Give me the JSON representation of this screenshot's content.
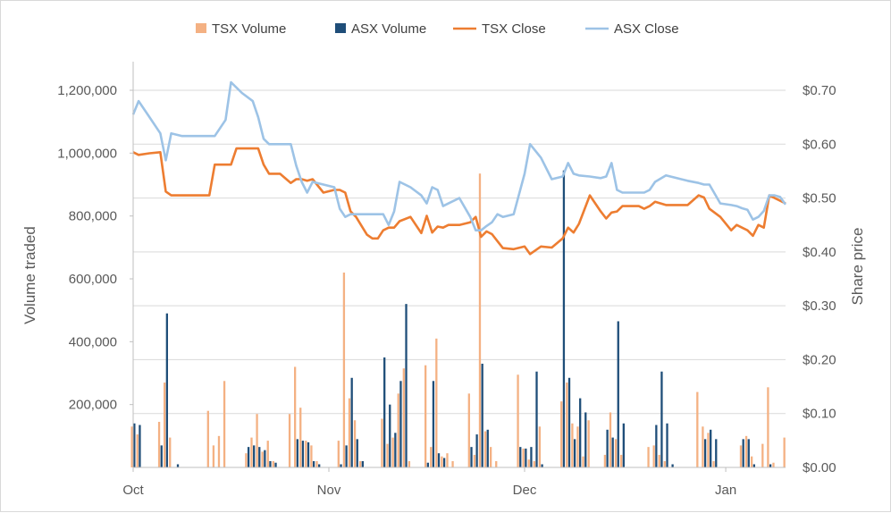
{
  "chart_data": {
    "type": "bar+line",
    "title": "",
    "legend": {
      "position": "top",
      "items": [
        {
          "label": "TSX Volume",
          "color": "#f4b183",
          "kind": "bar"
        },
        {
          "label": "ASX Volume",
          "color": "#1f4e79",
          "kind": "bar"
        },
        {
          "label": "TSX Close",
          "color": "#ed7d31",
          "kind": "line"
        },
        {
          "label": "ASX Close",
          "color": "#9dc3e6",
          "kind": "line"
        }
      ]
    },
    "x_axis": {
      "domain": [
        0,
        120
      ],
      "ticks": [
        {
          "label": "Oct",
          "x": 0
        },
        {
          "label": "Nov",
          "x": 36
        },
        {
          "label": "Dec",
          "x": 72
        },
        {
          "label": "Jan",
          "x": 109
        }
      ]
    },
    "y_left": {
      "label": "Volume traded",
      "range": [
        0,
        1200000
      ],
      "ticks": [
        "200,000",
        "400,000",
        "600,000",
        "800,000",
        "1,000,000",
        "1,200,000"
      ],
      "tick_values": [
        200000,
        400000,
        600000,
        800000,
        1000000,
        1200000
      ]
    },
    "y_right": {
      "label": "Share price",
      "range": [
        0,
        0.7
      ],
      "ticks": [
        "$0.00",
        "$0.10",
        "$0.20",
        "$0.30",
        "$0.40",
        "$0.50",
        "$0.60",
        "$0.70"
      ],
      "tick_values": [
        0,
        0.1,
        0.2,
        0.3,
        0.4,
        0.5,
        0.6,
        0.7
      ]
    },
    "grid": {
      "horizontal": true,
      "vertical": false
    },
    "series": [
      {
        "name": "TSX Volume",
        "type": "bar",
        "axis": "left",
        "color": "#f4b183",
        "x": [
          0,
          1,
          5,
          6,
          7,
          14,
          15,
          16,
          17,
          21,
          22,
          23,
          24,
          25,
          26,
          29,
          30,
          31,
          32,
          33,
          34,
          38,
          39,
          40,
          41,
          42,
          46,
          47,
          48,
          49,
          50,
          51,
          54,
          55,
          56,
          57,
          58,
          59,
          62,
          63,
          64,
          65,
          66,
          67,
          71,
          72,
          73,
          74,
          75,
          79,
          80,
          81,
          82,
          83,
          84,
          87,
          88,
          89,
          90,
          95,
          96,
          97,
          98,
          104,
          105,
          106,
          107,
          112,
          113,
          114,
          116,
          117,
          118,
          120
        ],
        "values": [
          130000,
          105000,
          145000,
          270000,
          95000,
          180000,
          70000,
          100000,
          275000,
          45000,
          95000,
          170000,
          50000,
          85000,
          20000,
          170000,
          320000,
          190000,
          85000,
          70000,
          20000,
          85000,
          620000,
          220000,
          150000,
          20000,
          155000,
          75000,
          95000,
          235000,
          315000,
          20000,
          325000,
          65000,
          410000,
          35000,
          45000,
          20000,
          235000,
          40000,
          935000,
          115000,
          65000,
          20000,
          295000,
          60000,
          25000,
          20000,
          130000,
          210000,
          270000,
          140000,
          130000,
          35000,
          150000,
          40000,
          175000,
          90000,
          40000,
          65000,
          70000,
          40000,
          20000,
          240000,
          130000,
          110000,
          20000,
          70000,
          100000,
          35000,
          75000,
          255000,
          15000,
          95000
        ]
      },
      {
        "name": "ASX Volume",
        "type": "bar",
        "axis": "left",
        "color": "#1f4e79",
        "x": [
          0,
          1,
          5,
          6,
          8,
          21,
          22,
          23,
          24,
          25,
          26,
          30,
          31,
          32,
          33,
          34,
          38,
          39,
          40,
          41,
          42,
          46,
          47,
          48,
          49,
          50,
          54,
          55,
          56,
          57,
          62,
          63,
          64,
          65,
          71,
          72,
          73,
          74,
          75,
          79,
          80,
          81,
          82,
          83,
          87,
          88,
          89,
          90,
          96,
          97,
          98,
          99,
          105,
          106,
          107,
          112,
          113,
          114,
          117
        ],
        "values": [
          140000,
          135000,
          70000,
          490000,
          10000,
          65000,
          70000,
          65000,
          55000,
          20000,
          15000,
          90000,
          85000,
          80000,
          20000,
          10000,
          10000,
          70000,
          285000,
          90000,
          20000,
          350000,
          200000,
          110000,
          275000,
          520000,
          15000,
          275000,
          45000,
          30000,
          65000,
          105000,
          330000,
          120000,
          65000,
          60000,
          65000,
          305000,
          10000,
          945000,
          285000,
          90000,
          220000,
          175000,
          120000,
          95000,
          465000,
          140000,
          135000,
          305000,
          140000,
          10000,
          90000,
          120000,
          90000,
          90000,
          90000,
          10000,
          10000
        ]
      },
      {
        "name": "TSX Close",
        "type": "line",
        "axis": "right",
        "color": "#ed7d31",
        "x": [
          0,
          1,
          3,
          5,
          6,
          7,
          9,
          11,
          13,
          14,
          15,
          17,
          18,
          19,
          20,
          22,
          23,
          24,
          25,
          27,
          29,
          30,
          31,
          32,
          33,
          35,
          37,
          38,
          39,
          40,
          41,
          43,
          44,
          45,
          46,
          47,
          48,
          49,
          51,
          53,
          54,
          55,
          56,
          57,
          58,
          60,
          62,
          63,
          64,
          65,
          66,
          67,
          68,
          70,
          72,
          73,
          75,
          77,
          79,
          80,
          81,
          82,
          84,
          86,
          87,
          88,
          89,
          90,
          92,
          93,
          94,
          95,
          96,
          98,
          100,
          102,
          104,
          105,
          106,
          108,
          110,
          111,
          112,
          113,
          114,
          115,
          116,
          117,
          118,
          119,
          120
        ],
        "values": [
          0.585,
          0.58,
          0.583,
          0.585,
          0.512,
          0.505,
          0.505,
          0.505,
          0.505,
          0.505,
          0.562,
          0.562,
          0.562,
          0.592,
          0.592,
          0.592,
          0.592,
          0.562,
          0.545,
          0.545,
          0.528,
          0.535,
          0.535,
          0.532,
          0.535,
          0.51,
          0.515,
          0.515,
          0.51,
          0.475,
          0.465,
          0.432,
          0.425,
          0.425,
          0.44,
          0.445,
          0.445,
          0.457,
          0.465,
          0.435,
          0.467,
          0.436,
          0.447,
          0.445,
          0.45,
          0.45,
          0.455,
          0.465,
          0.428,
          0.438,
          0.433,
          0.42,
          0.407,
          0.405,
          0.41,
          0.396,
          0.41,
          0.408,
          0.425,
          0.445,
          0.436,
          0.452,
          0.505,
          0.475,
          0.462,
          0.473,
          0.475,
          0.485,
          0.485,
          0.485,
          0.48,
          0.485,
          0.493,
          0.487,
          0.487,
          0.487,
          0.505,
          0.501,
          0.48,
          0.465,
          0.44,
          0.45,
          0.445,
          0.44,
          0.43,
          0.45,
          0.445,
          0.505,
          0.5,
          0.495,
          0.49
        ],
        "values_note": ""
      },
      {
        "name": "ASX Close",
        "type": "line",
        "axis": "right",
        "color": "#9dc3e6",
        "x": [
          0,
          1,
          3,
          5,
          6,
          7,
          9,
          11,
          13,
          14,
          15,
          17,
          18,
          19,
          20,
          22,
          23,
          24,
          25,
          27,
          29,
          30,
          31,
          32,
          33,
          35,
          37,
          38,
          39,
          40,
          41,
          43,
          44,
          45,
          46,
          47,
          48,
          49,
          51,
          53,
          54,
          55,
          56,
          57,
          58,
          60,
          62,
          63,
          64,
          65,
          66,
          67,
          68,
          70,
          72,
          73,
          75,
          77,
          79,
          80,
          81,
          82,
          84,
          86,
          87,
          88,
          89,
          90,
          92,
          93,
          94,
          95,
          96,
          98,
          100,
          102,
          104,
          105,
          106,
          108,
          110,
          111,
          112,
          113,
          114,
          115,
          116,
          117,
          118,
          119,
          120
        ],
        "values": [
          0.655,
          0.68,
          0.65,
          0.62,
          0.57,
          0.62,
          0.615,
          0.615,
          0.615,
          0.615,
          0.615,
          0.645,
          0.715,
          0.705,
          0.695,
          0.68,
          0.65,
          0.61,
          0.6,
          0.6,
          0.6,
          0.56,
          0.53,
          0.51,
          0.53,
          0.525,
          0.52,
          0.48,
          0.465,
          0.47,
          0.47,
          0.47,
          0.47,
          0.47,
          0.47,
          0.45,
          0.475,
          0.53,
          0.52,
          0.505,
          0.49,
          0.52,
          0.515,
          0.485,
          0.49,
          0.5,
          0.465,
          0.44,
          0.44,
          0.448,
          0.455,
          0.47,
          0.465,
          0.47,
          0.545,
          0.6,
          0.575,
          0.535,
          0.54,
          0.565,
          0.545,
          0.542,
          0.54,
          0.537,
          0.54,
          0.565,
          0.515,
          0.51,
          0.51,
          0.51,
          0.51,
          0.515,
          0.53,
          0.542,
          0.537,
          0.532,
          0.528,
          0.525,
          0.525,
          0.49,
          0.487,
          0.485,
          0.481,
          0.478,
          0.46,
          0.465,
          0.476,
          0.505,
          0.505,
          0.502,
          0.488
        ],
        "values_note": ""
      }
    ]
  }
}
